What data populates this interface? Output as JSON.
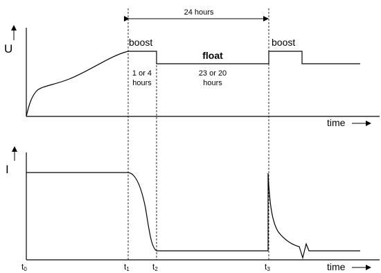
{
  "top_graph": {
    "y_label": "U",
    "x_label": "time",
    "phase_boost_1": "boost",
    "phase_float": "float",
    "phase_boost_2": "boost",
    "boost_duration_line1": "1 or 4",
    "boost_duration_line2": "hours",
    "float_duration_line1": "23 or 20",
    "float_duration_line2": "hours"
  },
  "period": {
    "label": "24 hours"
  },
  "bottom_graph": {
    "y_label": "I",
    "x_label": "time"
  },
  "time_markers": {
    "t0_base": "t",
    "t0_sub": "0",
    "t1_base": "t",
    "t1_sub": "1",
    "t2_base": "t",
    "t2_sub": "2",
    "t3_base": "t",
    "t3_sub": "3"
  }
}
